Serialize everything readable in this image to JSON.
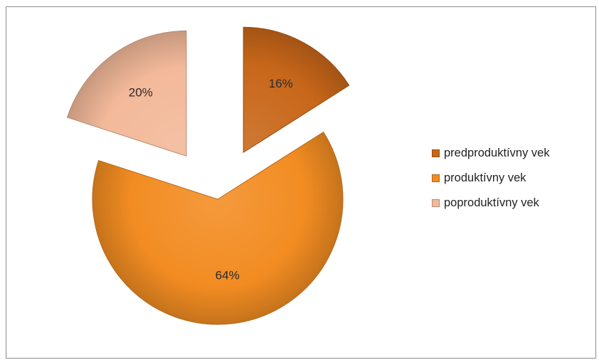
{
  "chart_data": {
    "type": "pie",
    "title": "",
    "slices": [
      {
        "name": "predproduktívny vek",
        "value": 16,
        "label": "16%",
        "color": "#c8671a",
        "exploded": true
      },
      {
        "name": "produktívny vek",
        "value": 64,
        "label": "64%",
        "color": "#f28c22",
        "exploded": false
      },
      {
        "name": "poproduktívny vek",
        "value": 20,
        "label": "20%",
        "color": "#f3b99a",
        "exploded": true
      }
    ],
    "legend": {
      "placement": "right",
      "items": [
        "predproduktívny vek",
        "produktívny vek",
        "poproduktívny vek"
      ]
    },
    "data_labels": "inside"
  }
}
